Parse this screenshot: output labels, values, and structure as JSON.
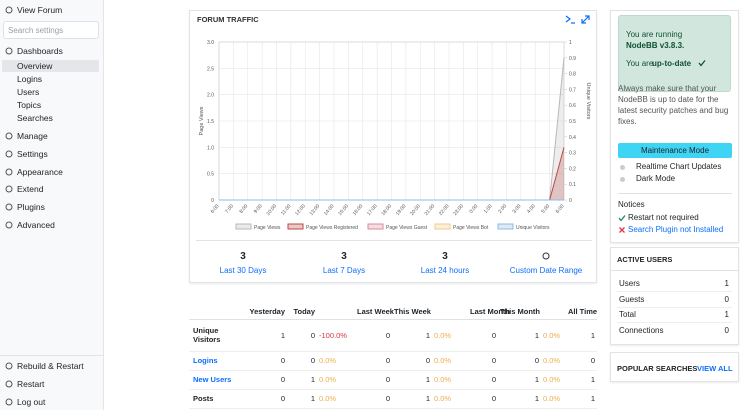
{
  "sidebar": {
    "view_forum": "View Forum",
    "search": "Search settings",
    "dashboards": "Dashboards",
    "dashboard_items": [
      "Overview",
      "Logins",
      "Users",
      "Topics",
      "Searches"
    ],
    "menu": [
      "Manage",
      "Settings",
      "Appearance",
      "Extend",
      "Plugins",
      "Advanced"
    ],
    "footer": [
      "Rebuild & Restart",
      "Restart",
      "Log out"
    ]
  },
  "chart_data": {
    "type": "line",
    "title": "FORUM TRAFFIC",
    "y_label": "Page Views",
    "y2_label": "Unique Visitors",
    "categories": [
      "6:00",
      "7:00",
      "8:00",
      "9:00",
      "10:00",
      "11:00",
      "12:00",
      "13:00",
      "14:00",
      "15:00",
      "16:00",
      "17:00",
      "18:00",
      "19:00",
      "20:00",
      "21:00",
      "22:00",
      "23:00",
      "0:00",
      "1:00",
      "2:00",
      "3:00",
      "4:00",
      "5:00",
      "6:00"
    ],
    "series": [
      {
        "name": "Page Views",
        "color": "#b8b8b8",
        "values": [
          0,
          0,
          0,
          0,
          0,
          0,
          0,
          0,
          0,
          0,
          0,
          0,
          0,
          0,
          0,
          0,
          0,
          0,
          0,
          0,
          0,
          0,
          0,
          0,
          2.7
        ]
      },
      {
        "name": "Page Views Registered",
        "color": "#b94a48",
        "values": [
          0,
          0,
          0,
          0,
          0,
          0,
          0,
          0,
          0,
          0,
          0,
          0,
          0,
          0,
          0,
          0,
          0,
          0,
          0,
          0,
          0,
          0,
          0,
          0,
          1
        ]
      },
      {
        "name": "Page Views Guest",
        "color": "#d88a9e",
        "values": [
          0,
          0,
          0,
          0,
          0,
          0,
          0,
          0,
          0,
          0,
          0,
          0,
          0,
          0,
          0,
          0,
          0,
          0,
          0,
          0,
          0,
          0,
          0,
          0,
          0
        ]
      },
      {
        "name": "Page Views Bot",
        "color": "#f4c98a",
        "values": [
          0,
          0,
          0,
          0,
          0,
          0,
          0,
          0,
          0,
          0,
          0,
          0,
          0,
          0,
          0,
          0,
          0,
          0,
          0,
          0,
          0,
          0,
          0,
          0,
          0
        ]
      },
      {
        "name": "Unique Visitors",
        "color": "#8fbbe0",
        "axis": "y2",
        "values": [
          0,
          0,
          0,
          0,
          0,
          0,
          0,
          0,
          0,
          0,
          0,
          0,
          0,
          0,
          0,
          0,
          0,
          0,
          0,
          0,
          0,
          0,
          0,
          0,
          0
        ]
      }
    ],
    "ylim": [
      0,
      3
    ],
    "yticks": [
      0,
      0.5,
      {
        "value": 1,
        "label": "1.0"
      },
      1.5,
      {
        "value": 2,
        "label": "2.0"
      },
      2.5,
      {
        "value": 3,
        "label": "3.0"
      }
    ],
    "y2lim": [
      0,
      1
    ],
    "y2ticks": [
      0,
      0.1,
      0.2,
      0.3,
      0.4,
      0.5,
      0.6,
      0.7,
      0.8,
      0.9,
      1
    ],
    "grid": true
  },
  "stats": [
    {
      "value": 3,
      "label": "Last 30 Days"
    },
    {
      "value": 3,
      "label": "Last 7 Days"
    },
    {
      "value": 3,
      "label": "Last 24 hours"
    }
  ],
  "custom_range": "Custom Date Range",
  "table": {
    "headers": [
      "Yesterday",
      "Today",
      "Last Week",
      "This Week",
      "Last Month",
      "This Month",
      "All Time"
    ],
    "rows": [
      {
        "label": "Unique Visitors",
        "link": false,
        "cells": [
          "1",
          "0",
          "-100.0%",
          "0",
          "1",
          "0.0%",
          "0",
          "1",
          "0.0%",
          "1"
        ]
      },
      {
        "label": "Logins",
        "link": true,
        "cells": [
          "0",
          "0",
          "0.0%",
          "0",
          "0",
          "0.0%",
          "0",
          "0",
          "0.0%",
          "0"
        ]
      },
      {
        "label": "New Users",
        "link": true,
        "cells": [
          "0",
          "1",
          "0.0%",
          "0",
          "1",
          "0.0%",
          "0",
          "1",
          "0.0%",
          "1"
        ]
      },
      {
        "label": "Posts",
        "link": false,
        "cells": [
          "0",
          "1",
          "0.0%",
          "0",
          "1",
          "0.0%",
          "0",
          "1",
          "0.0%",
          "1"
        ]
      }
    ]
  },
  "status": {
    "running": "You are running",
    "version": "NodeBB v3.8.3.",
    "uptodate_prefix": "You are",
    "uptodate": "up-to-date",
    "advice": "Always make sure that your NodeBB is up to date for the latest security patches and bug fixes.",
    "maintenance": "Maintenance Mode",
    "toggles": [
      "Realtime Chart Updates",
      "Dark Mode"
    ],
    "notices_title": "Notices",
    "notices": [
      {
        "text": "Restart not required",
        "ok": true
      },
      {
        "text": "Search Plugin not Installed",
        "ok": false
      }
    ]
  },
  "active_users": {
    "title": "ACTIVE USERS",
    "rows": [
      {
        "label": "Users",
        "value": 1
      },
      {
        "label": "Guests",
        "value": 0
      },
      {
        "label": "Total",
        "value": 1
      },
      {
        "label": "Connections",
        "value": 0
      }
    ]
  },
  "popular_searches": {
    "title": "POPULAR SEARCHES",
    "link": "VIEW ALL"
  }
}
